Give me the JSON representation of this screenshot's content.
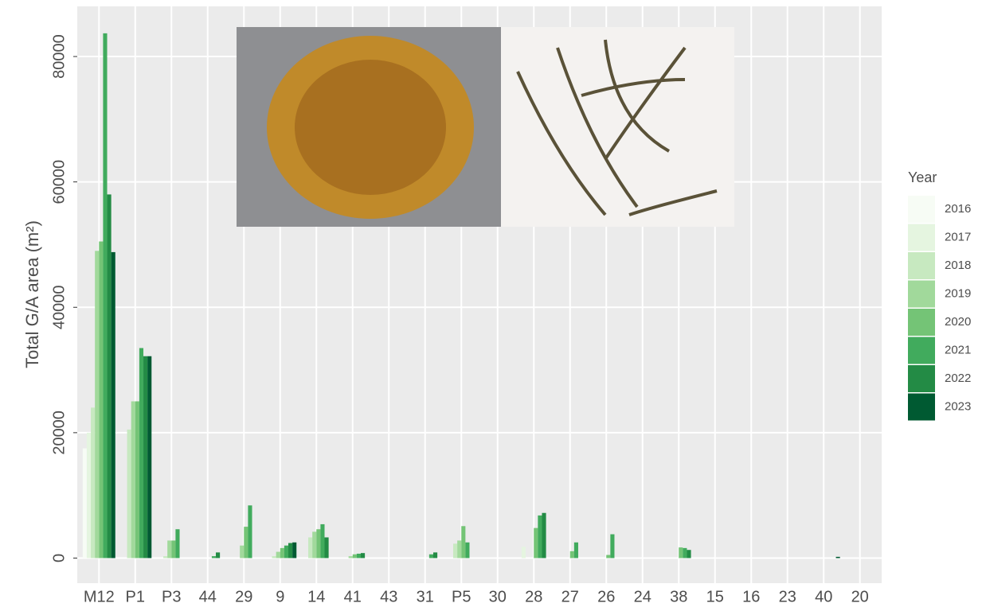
{
  "chart_data": {
    "type": "bar",
    "ylabel": "Total G/A area (m²)",
    "categories": [
      "M12",
      "P1",
      "P3",
      "44",
      "29",
      "9",
      "14",
      "41",
      "43",
      "31",
      "P5",
      "30",
      "28",
      "27",
      "26",
      "24",
      "38",
      "15",
      "16",
      "23",
      "40",
      "20"
    ],
    "legend_title": "Year",
    "series": [
      {
        "name": "2016",
        "color": "#f7fcf5",
        "values": [
          17500,
          0,
          0,
          0,
          0,
          0,
          0,
          0,
          0,
          0,
          0,
          0,
          0,
          0,
          0,
          0,
          0,
          0,
          0,
          0,
          0,
          0
        ]
      },
      {
        "name": "2017",
        "color": "#e5f5e0",
        "values": [
          20000,
          0,
          0,
          0,
          0,
          0,
          0,
          0,
          0,
          0,
          0,
          0,
          1800,
          0,
          0,
          0,
          0,
          0,
          0,
          0,
          0,
          0
        ]
      },
      {
        "name": "2018",
        "color": "#c7e9c0",
        "values": [
          24000,
          20500,
          300,
          0,
          0,
          300,
          3300,
          0,
          0,
          0,
          2300,
          0,
          0,
          0,
          0,
          0,
          0,
          0,
          0,
          0,
          0,
          0
        ]
      },
      {
        "name": "2019",
        "color": "#a1d99b",
        "values": [
          49000,
          25000,
          2800,
          0,
          2000,
          1000,
          4200,
          300,
          0,
          0,
          2800,
          0,
          0,
          0,
          0,
          0,
          0,
          0,
          0,
          0,
          0,
          0
        ]
      },
      {
        "name": "2020",
        "color": "#74c476",
        "values": [
          50500,
          25000,
          2800,
          0,
          5000,
          1600,
          4600,
          600,
          0,
          0,
          5100,
          0,
          4800,
          1100,
          500,
          0,
          1700,
          0,
          0,
          0,
          0,
          0
        ]
      },
      {
        "name": "2021",
        "color": "#41ab5d",
        "values": [
          83700,
          33500,
          4600,
          300,
          8400,
          2000,
          5400,
          700,
          0,
          600,
          2500,
          0,
          6800,
          2500,
          3800,
          0,
          1600,
          0,
          0,
          0,
          0,
          0
        ]
      },
      {
        "name": "2022",
        "color": "#238b45",
        "values": [
          58000,
          32200,
          0,
          900,
          0,
          2400,
          3300,
          800,
          0,
          900,
          0,
          0,
          7200,
          0,
          0,
          0,
          1300,
          0,
          0,
          0,
          0,
          0
        ]
      },
      {
        "name": "2023",
        "color": "#005a32",
        "values": [
          48800,
          32200,
          0,
          0,
          0,
          2500,
          0,
          0,
          0,
          0,
          0,
          0,
          0,
          0,
          0,
          0,
          0,
          0,
          0,
          0,
          200,
          0
        ]
      }
    ],
    "ylim": [
      -4000,
      88000
    ],
    "yticks": [
      0,
      20000,
      40000,
      60000,
      80000
    ],
    "grid": true
  }
}
